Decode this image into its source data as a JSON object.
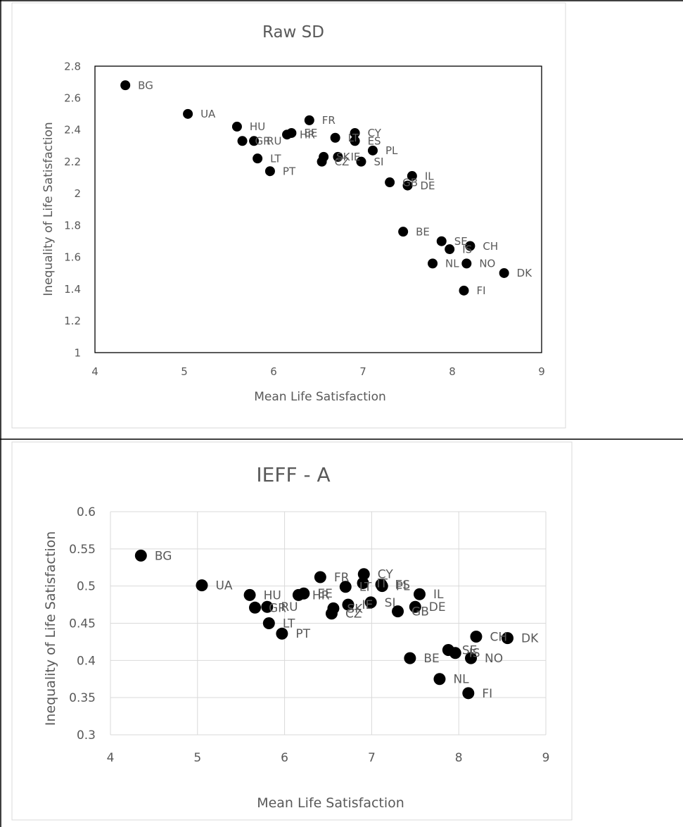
{
  "chart_data": [
    {
      "type": "scatter",
      "title": "Raw SD",
      "xlabel": "Mean Life Satisfaction",
      "ylabel": "Inequality of Life Satisfaction",
      "xlim": [
        4,
        9
      ],
      "ylim": [
        1,
        2.8
      ],
      "xticks": [
        4,
        5,
        6,
        7,
        8,
        9
      ],
      "yticks": [
        1,
        1.2,
        1.4,
        1.6,
        1.8,
        2,
        2.2,
        2.4,
        2.6,
        2.8
      ],
      "ytick_labels": [
        "1",
        "1.2",
        "1.4",
        "1.6",
        "1.8",
        "2",
        "2.2",
        "2.4",
        "2.6",
        "2.8"
      ],
      "grid": {
        "x": false,
        "y": false
      },
      "points": [
        {
          "label": "BG",
          "x": 4.34,
          "y": 2.68
        },
        {
          "label": "UA",
          "x": 5.04,
          "y": 2.5
        },
        {
          "label": "HU",
          "x": 5.59,
          "y": 2.42
        },
        {
          "label": "GR",
          "x": 5.65,
          "y": 2.33
        },
        {
          "label": "RU",
          "x": 5.78,
          "y": 2.33
        },
        {
          "label": "LT",
          "x": 5.82,
          "y": 2.22
        },
        {
          "label": "PT",
          "x": 5.96,
          "y": 2.14
        },
        {
          "label": "HR",
          "x": 6.15,
          "y": 2.37
        },
        {
          "label": "EE",
          "x": 6.2,
          "y": 2.38
        },
        {
          "label": "FR",
          "x": 6.4,
          "y": 2.46
        },
        {
          "label": "CZ",
          "x": 6.54,
          "y": 2.2
        },
        {
          "label": "SK",
          "x": 6.56,
          "y": 2.23
        },
        {
          "label": "IE",
          "x": 6.72,
          "y": 2.23
        },
        {
          "label": "LT",
          "x": 6.69,
          "y": 2.35
        },
        {
          "label": "CY",
          "x": 6.91,
          "y": 2.38
        },
        {
          "label": "ES",
          "x": 6.91,
          "y": 2.33
        },
        {
          "label": "SI",
          "x": 6.98,
          "y": 2.2
        },
        {
          "label": "PL",
          "x": 7.11,
          "y": 2.27
        },
        {
          "label": "GB",
          "x": 7.3,
          "y": 2.07
        },
        {
          "label": "DE",
          "x": 7.5,
          "y": 2.05
        },
        {
          "label": "IL",
          "x": 7.55,
          "y": 2.11
        },
        {
          "label": "BE",
          "x": 7.45,
          "y": 1.76
        },
        {
          "label": "SE",
          "x": 7.88,
          "y": 1.7
        },
        {
          "label": "IS",
          "x": 7.97,
          "y": 1.65
        },
        {
          "label": "CH",
          "x": 8.2,
          "y": 1.67
        },
        {
          "label": "NL",
          "x": 7.78,
          "y": 1.56
        },
        {
          "label": "NO",
          "x": 8.16,
          "y": 1.56
        },
        {
          "label": "DK",
          "x": 8.58,
          "y": 1.5
        },
        {
          "label": "FI",
          "x": 8.13,
          "y": 1.39
        }
      ]
    },
    {
      "type": "scatter",
      "title": "IEFF - A",
      "xlabel": "Mean Life Satisfaction",
      "ylabel": "Inequality of Life Satisfaction",
      "xlim": [
        4,
        9
      ],
      "ylim": [
        0.3,
        0.6
      ],
      "xticks": [
        4,
        5,
        6,
        7,
        8,
        9
      ],
      "yticks": [
        0.3,
        0.35,
        0.4,
        0.45,
        0.5,
        0.55,
        0.6
      ],
      "ytick_labels": [
        "0.3",
        "0.35",
        "0.4",
        "0.45",
        "0.5",
        "0.55",
        "0.6"
      ],
      "grid": {
        "x": true,
        "y": true
      },
      "points": [
        {
          "label": "BG",
          "x": 4.35,
          "y": 0.541
        },
        {
          "label": "UA",
          "x": 5.05,
          "y": 0.501
        },
        {
          "label": "HU",
          "x": 5.6,
          "y": 0.488
        },
        {
          "label": "GR",
          "x": 5.66,
          "y": 0.471
        },
        {
          "label": "RU",
          "x": 5.8,
          "y": 0.472
        },
        {
          "label": "LT",
          "x": 5.82,
          "y": 0.45
        },
        {
          "label": "PT",
          "x": 5.97,
          "y": 0.436
        },
        {
          "label": "HR",
          "x": 6.16,
          "y": 0.488
        },
        {
          "label": "EE",
          "x": 6.22,
          "y": 0.49
        },
        {
          "label": "FR",
          "x": 6.41,
          "y": 0.512
        },
        {
          "label": "CZ",
          "x": 6.54,
          "y": 0.463
        },
        {
          "label": "SK",
          "x": 6.56,
          "y": 0.47
        },
        {
          "label": "LT",
          "x": 6.7,
          "y": 0.499
        },
        {
          "label": "IE",
          "x": 6.73,
          "y": 0.475
        },
        {
          "label": "CY",
          "x": 6.91,
          "y": 0.516
        },
        {
          "label": "IT",
          "x": 6.9,
          "y": 0.504
        },
        {
          "label": "SI",
          "x": 6.99,
          "y": 0.478
        },
        {
          "label": "ES",
          "x": 7.11,
          "y": 0.502
        },
        {
          "label": "PL",
          "x": 7.12,
          "y": 0.5
        },
        {
          "label": "GB",
          "x": 7.3,
          "y": 0.466
        },
        {
          "label": "DE",
          "x": 7.5,
          "y": 0.472
        },
        {
          "label": "IL",
          "x": 7.55,
          "y": 0.489
        },
        {
          "label": "BE",
          "x": 7.44,
          "y": 0.403
        },
        {
          "label": "SE",
          "x": 7.88,
          "y": 0.414
        },
        {
          "label": "IS",
          "x": 7.96,
          "y": 0.41
        },
        {
          "label": "CH",
          "x": 8.2,
          "y": 0.432
        },
        {
          "label": "NO",
          "x": 8.14,
          "y": 0.403
        },
        {
          "label": "NL",
          "x": 7.78,
          "y": 0.375
        },
        {
          "label": "DK",
          "x": 8.56,
          "y": 0.43
        },
        {
          "label": "FI",
          "x": 8.11,
          "y": 0.356
        }
      ]
    }
  ],
  "colors": {
    "marker": "#000000",
    "text": "#595959",
    "title": "#595959",
    "plot_border": "#000000",
    "grid": "#d9d9d9",
    "chart_border": "#d9d9d9",
    "table_border": "#000000"
  }
}
